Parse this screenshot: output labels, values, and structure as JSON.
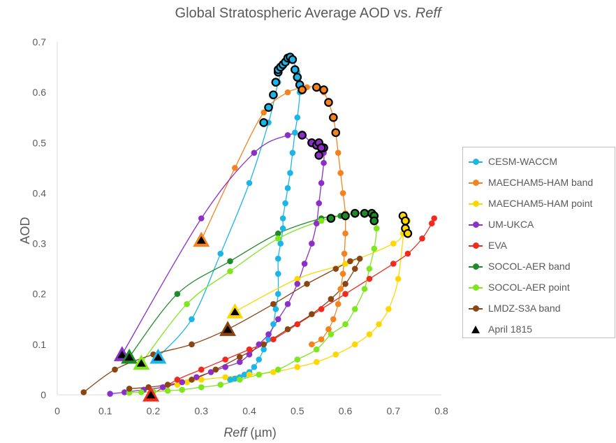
{
  "title_main": "Global Stratospheric Average AOD vs. ",
  "title_italic": "Reff",
  "chart_data": {
    "type": "scatter",
    "title": "Global Stratospheric Average AOD vs. Reff",
    "xlabel_italic": "Reff",
    "xlabel_unit": " (µm)",
    "ylabel": "AOD",
    "xlim": [
      0,
      0.8
    ],
    "ylim": [
      0,
      0.7
    ],
    "x_ticks": [
      "0",
      "0.1",
      "0.2",
      "0.3",
      "0.4",
      "0.5",
      "0.6",
      "0.7",
      "0.8"
    ],
    "y_ticks": [
      "0",
      "0.1",
      "0.2",
      "0.3",
      "0.4",
      "0.5",
      "0.6",
      "0.7"
    ],
    "legend_position": "right",
    "grid": false,
    "series": [
      {
        "name": "CESM-WACCM",
        "color": "#1cb5e8",
        "x": [
          0.21,
          0.28,
          0.34,
          0.4,
          0.44,
          0.46,
          0.47,
          0.475,
          0.48,
          0.485,
          0.49,
          0.5,
          0.505,
          0.5,
          0.495,
          0.49,
          0.485,
          0.48,
          0.475,
          0.47,
          0.47,
          0.465,
          0.46,
          0.46,
          0.46,
          0.455,
          0.45,
          0.44,
          0.43,
          0.42,
          0.41,
          0.4,
          0.39,
          0.38,
          0.37,
          0.36
        ],
        "y": [
          0.075,
          0.15,
          0.28,
          0.42,
          0.54,
          0.62,
          0.65,
          0.66,
          0.668,
          0.67,
          0.665,
          0.64,
          0.6,
          0.55,
          0.52,
          0.48,
          0.44,
          0.41,
          0.38,
          0.35,
          0.33,
          0.3,
          0.27,
          0.24,
          0.2,
          0.17,
          0.14,
          0.11,
          0.09,
          0.07,
          0.055,
          0.045,
          0.04,
          0.035,
          0.032,
          0.03
        ]
      },
      {
        "name": "MAECHAM5-HAM band",
        "color": "#f5821f",
        "x": [
          0.3,
          0.37,
          0.43,
          0.48,
          0.52,
          0.54,
          0.555,
          0.565,
          0.575,
          0.58,
          0.585,
          0.59,
          0.595,
          0.6,
          0.6,
          0.598,
          0.595,
          0.59,
          0.585,
          0.575,
          0.565,
          0.55,
          0.53
        ],
        "y": [
          0.307,
          0.45,
          0.56,
          0.6,
          0.61,
          0.61,
          0.6,
          0.58,
          0.55,
          0.52,
          0.48,
          0.44,
          0.4,
          0.36,
          0.32,
          0.28,
          0.24,
          0.21,
          0.18,
          0.15,
          0.13,
          0.11,
          0.1
        ]
      },
      {
        "name": "MAECHAM5-HAM point",
        "color": "#ffd700",
        "x": [
          0.37,
          0.5,
          0.6,
          0.7,
          0.72,
          0.725,
          0.73,
          0.725,
          0.71,
          0.69,
          0.67,
          0.65,
          0.62,
          0.58,
          0.54,
          0.5,
          0.45,
          0.4,
          0.35,
          0.3,
          0.27,
          0.25
        ],
        "y": [
          0.165,
          0.23,
          0.26,
          0.3,
          0.32,
          0.335,
          0.345,
          0.35,
          0.23,
          0.17,
          0.14,
          0.12,
          0.1,
          0.08,
          0.065,
          0.055,
          0.045,
          0.04,
          0.035,
          0.03,
          0.025,
          0.02
        ]
      },
      {
        "name": "UM-UKCA",
        "color": "#8c2fc7",
        "x": [
          0.135,
          0.3,
          0.41,
          0.48,
          0.51,
          0.53,
          0.54,
          0.545,
          0.55,
          0.555,
          0.555,
          0.55,
          0.545,
          0.54,
          0.53,
          0.515,
          0.5,
          0.48,
          0.46,
          0.44,
          0.42,
          0.4,
          0.38,
          0.35,
          0.32,
          0.29,
          0.26,
          0.22,
          0.18,
          0.14,
          0.11
        ],
        "y": [
          0.08,
          0.35,
          0.48,
          0.515,
          0.515,
          0.5,
          0.5,
          0.495,
          0.49,
          0.48,
          0.46,
          0.42,
          0.38,
          0.34,
          0.3,
          0.26,
          0.22,
          0.18,
          0.15,
          0.12,
          0.1,
          0.08,
          0.065,
          0.055,
          0.045,
          0.035,
          0.025,
          0.015,
          0.01,
          0.005,
          0.002
        ]
      },
      {
        "name": "EVA",
        "color": "#f2291d",
        "x": [
          0.195,
          0.25,
          0.3,
          0.35,
          0.4,
          0.45,
          0.5,
          0.55,
          0.6,
          0.65,
          0.7,
          0.73,
          0.76,
          0.78,
          0.785
        ],
        "y": [
          0.0,
          0.03,
          0.05,
          0.07,
          0.09,
          0.11,
          0.14,
          0.17,
          0.2,
          0.23,
          0.26,
          0.28,
          0.31,
          0.34,
          0.35
        ]
      },
      {
        "name": "SOCOL-AER band",
        "color": "#1f8a2a",
        "x": [
          0.15,
          0.25,
          0.36,
          0.46,
          0.55,
          0.59,
          0.62,
          0.64,
          0.655,
          0.66
        ],
        "y": [
          0.075,
          0.2,
          0.265,
          0.32,
          0.35,
          0.355,
          0.36,
          0.36,
          0.355,
          0.345
        ]
      },
      {
        "name": "SOCOL-AER point",
        "color": "#7fe61e",
        "x": [
          0.175,
          0.27,
          0.36,
          0.46,
          0.55,
          0.62,
          0.65,
          0.66,
          0.665,
          0.66,
          0.65,
          0.64,
          0.62,
          0.6,
          0.57,
          0.54,
          0.5,
          0.46,
          0.42,
          0.38,
          0.34,
          0.3,
          0.26,
          0.23,
          0.2,
          0.175,
          0.15
        ],
        "y": [
          0.063,
          0.18,
          0.245,
          0.31,
          0.345,
          0.36,
          0.36,
          0.355,
          0.33,
          0.29,
          0.25,
          0.21,
          0.17,
          0.14,
          0.12,
          0.09,
          0.07,
          0.05,
          0.04,
          0.03,
          0.02,
          0.015,
          0.01,
          0.008,
          0.006,
          0.005,
          0.004
        ]
      },
      {
        "name": "LMDZ-S3A band",
        "color": "#8b4513",
        "x": [
          0.055,
          0.12,
          0.2,
          0.28,
          0.355,
          0.45,
          0.52,
          0.58,
          0.61,
          0.63,
          0.62,
          0.6,
          0.57,
          0.53,
          0.48,
          0.43,
          0.38,
          0.33,
          0.28,
          0.23,
          0.19,
          0.15
        ],
        "y": [
          0.005,
          0.05,
          0.08,
          0.1,
          0.13,
          0.18,
          0.22,
          0.25,
          0.265,
          0.27,
          0.25,
          0.22,
          0.19,
          0.16,
          0.13,
          0.1,
          0.075,
          0.05,
          0.03,
          0.02,
          0.015,
          0.012
        ]
      }
    ],
    "highlight_rings": [
      {
        "series": "CESM-WACCM",
        "x": [
          0.43,
          0.44,
          0.45,
          0.455,
          0.46,
          0.46,
          0.465,
          0.47,
          0.475,
          0.48,
          0.485,
          0.49,
          0.495,
          0.5,
          0.505
        ],
        "y": [
          0.54,
          0.57,
          0.595,
          0.62,
          0.64,
          0.645,
          0.65,
          0.655,
          0.66,
          0.668,
          0.67,
          0.665,
          0.645,
          0.63,
          0.615
        ]
      },
      {
        "series": "MAECHAM5-HAM band",
        "x": [
          0.51,
          0.54,
          0.555,
          0.565,
          0.575,
          0.58
        ],
        "y": [
          0.605,
          0.61,
          0.605,
          0.58,
          0.55,
          0.52
        ]
      },
      {
        "series": "UM-UKCA",
        "x": [
          0.51,
          0.53,
          0.54,
          0.545,
          0.55,
          0.555,
          0.545,
          0.55
        ],
        "y": [
          0.515,
          0.5,
          0.495,
          0.5,
          0.49,
          0.49,
          0.475,
          0.49
        ]
      },
      {
        "series": "SOCOL-AER band",
        "x": [
          0.57,
          0.6,
          0.62,
          0.64,
          0.655,
          0.66,
          0.66
        ],
        "y": [
          0.35,
          0.355,
          0.36,
          0.36,
          0.36,
          0.355,
          0.345
        ]
      },
      {
        "series": "MAECHAM5-HAM point",
        "x": [
          0.72,
          0.725,
          0.725,
          0.73
        ],
        "y": [
          0.355,
          0.345,
          0.33,
          0.32
        ]
      }
    ],
    "markers_april_1815": {
      "name": "April 1815",
      "points": [
        {
          "x": 0.135,
          "y": 0.08,
          "fill": "#8c2fc7"
        },
        {
          "x": 0.15,
          "y": 0.075,
          "fill": "#1f8a2a"
        },
        {
          "x": 0.175,
          "y": 0.063,
          "fill": "#7fe61e"
        },
        {
          "x": 0.21,
          "y": 0.075,
          "fill": "#1cb5e8"
        },
        {
          "x": 0.195,
          "y": 0.0,
          "fill": "#f2291d"
        },
        {
          "x": 0.3,
          "y": 0.307,
          "fill": "#f5821f"
        },
        {
          "x": 0.37,
          "y": 0.165,
          "fill": "#ffd700"
        },
        {
          "x": 0.355,
          "y": 0.13,
          "fill": "#8b4513"
        }
      ]
    }
  }
}
